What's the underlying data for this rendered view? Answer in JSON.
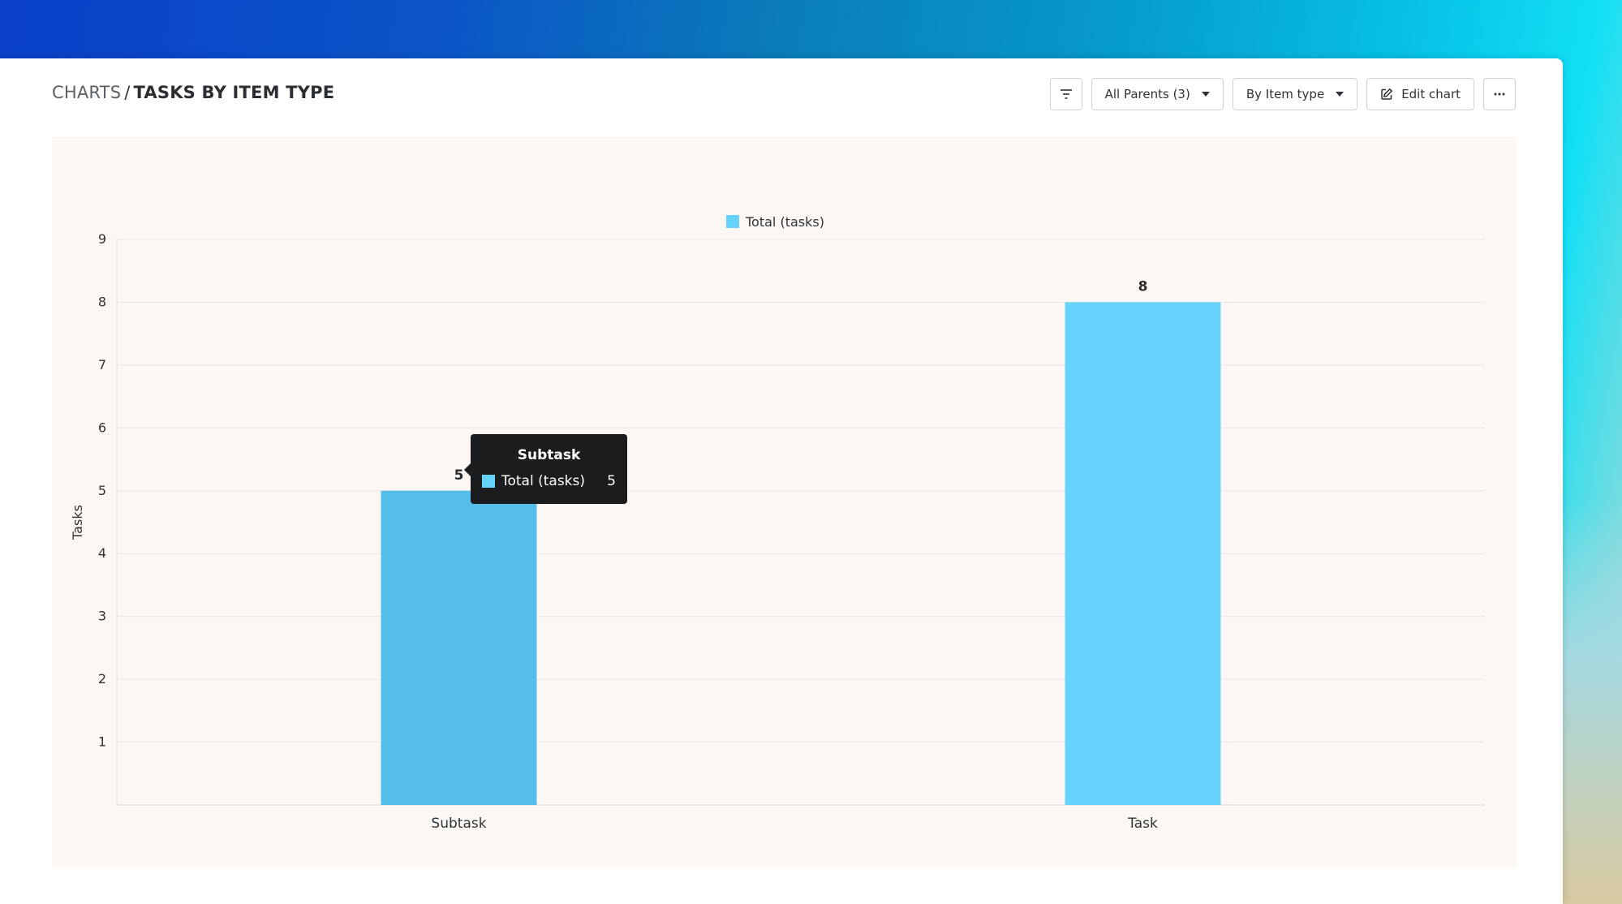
{
  "breadcrumb": {
    "root": "CHARTS",
    "separator": "/",
    "current": "TASKS BY ITEM TYPE"
  },
  "toolbar": {
    "filter_icon": "filter-icon",
    "parents_label": "All Parents (3)",
    "group_label": "By Item type",
    "edit_label": "Edit chart",
    "edit_icon": "edit-icon",
    "more_icon": "more-icon"
  },
  "colors": {
    "bar": "#66d3fd",
    "bar_hover": "#55bde9"
  },
  "chart_data": {
    "type": "bar",
    "categories": [
      "Subtask",
      "Task"
    ],
    "series": [
      {
        "name": "Total (tasks)",
        "values": [
          5,
          8
        ]
      }
    ],
    "title": "",
    "xlabel": "",
    "ylabel": "Tasks",
    "ylim": [
      0,
      9
    ],
    "yticks": [
      1,
      2,
      3,
      4,
      5,
      6,
      7,
      8,
      9
    ],
    "grid": true,
    "legend": "top-center",
    "data_labels": true
  },
  "tooltip": {
    "title": "Subtask",
    "series": "Total (tasks)",
    "value": "5"
  }
}
